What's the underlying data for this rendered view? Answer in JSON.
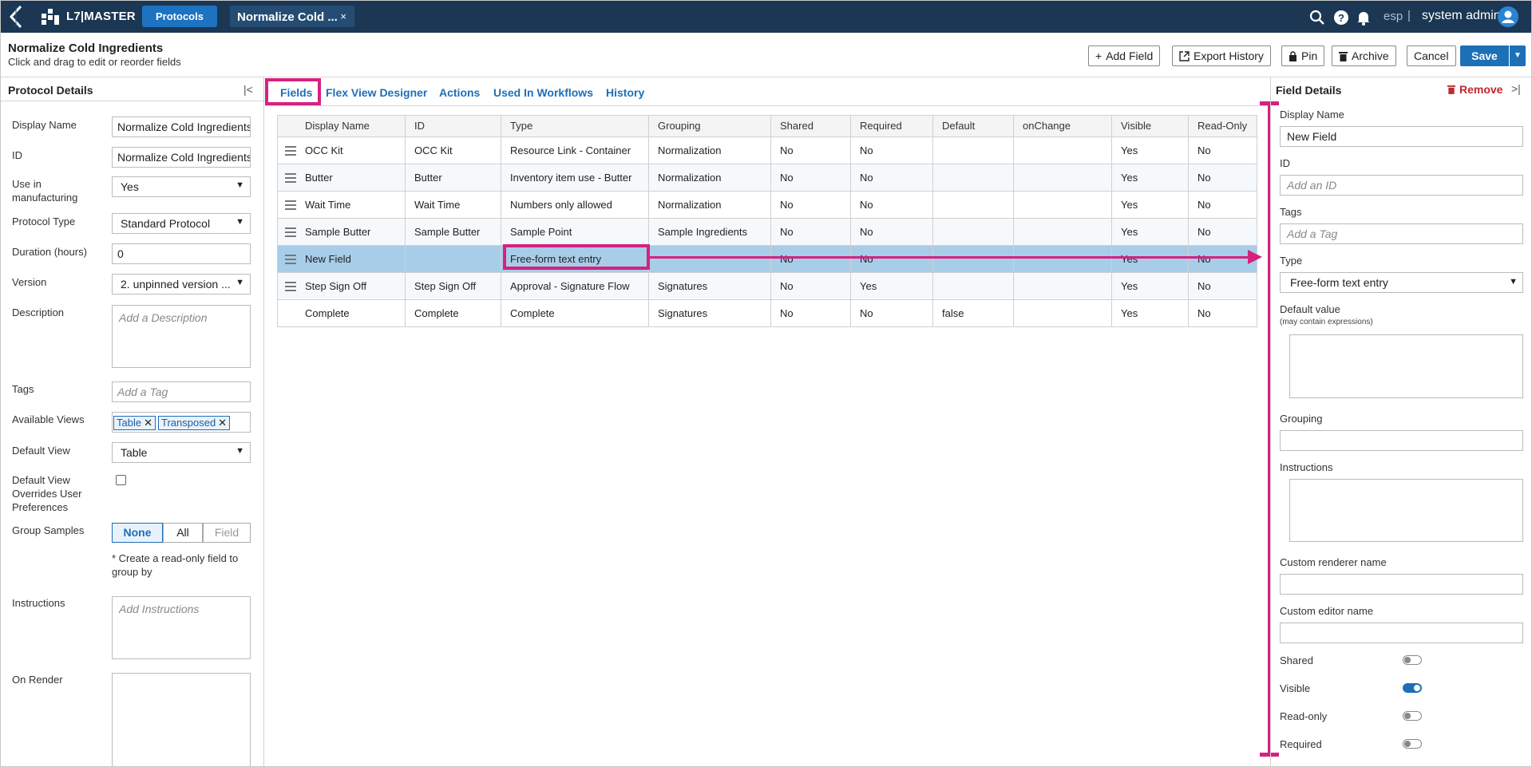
{
  "topbar": {
    "brand": "L7|MASTER",
    "nav_protocols": "Protocols",
    "doc_tab": "Normalize Cold ...",
    "doc_tab_close": "×",
    "lang": "esp",
    "separator": "|",
    "user": "system admin"
  },
  "header": {
    "title": "Normalize Cold Ingredients",
    "subtitle": "Click and drag to edit or reorder fields",
    "buttons": {
      "add_field": "Add Field",
      "export_history": "Export History",
      "pin": "Pin",
      "archive": "Archive",
      "cancel": "Cancel",
      "save": "Save"
    }
  },
  "protocol_details": {
    "title": "Protocol Details",
    "fields": {
      "display_name": {
        "label": "Display Name",
        "value": "Normalize Cold Ingredients"
      },
      "id": {
        "label": "ID",
        "value": "Normalize Cold Ingredients"
      },
      "use_in_manufacturing": {
        "label": "Use in manufacturing",
        "value": "Yes"
      },
      "protocol_type": {
        "label": "Protocol Type",
        "value": "Standard Protocol"
      },
      "duration": {
        "label": "Duration (hours)",
        "value": "0"
      },
      "version": {
        "label": "Version",
        "value": "2. unpinned version ..."
      },
      "description": {
        "label": "Description",
        "placeholder": "Add a Description"
      },
      "tags": {
        "label": "Tags",
        "placeholder": "Add a Tag"
      },
      "available_views": {
        "label": "Available Views",
        "chips": [
          "Table",
          "Transposed"
        ]
      },
      "default_view": {
        "label": "Default View",
        "value": "Table"
      },
      "default_view_overrides": {
        "label": "Default View Overrides User Preferences",
        "checked": false
      },
      "group_samples": {
        "label": "Group Samples",
        "options": [
          "None",
          "All",
          "Field"
        ],
        "selected": "None",
        "note": "* Create a read-only field to group by"
      },
      "instructions": {
        "label": "Instructions",
        "placeholder": "Add Instructions"
      },
      "on_render": {
        "label": "On Render"
      }
    }
  },
  "tabs": [
    "Fields",
    "Flex View Designer",
    "Actions",
    "Used In Workflows",
    "History"
  ],
  "active_tab": "Fields",
  "table": {
    "columns": [
      "Display Name",
      "ID",
      "Type",
      "Grouping",
      "Shared",
      "Required",
      "Default",
      "onChange",
      "Visible",
      "Read-Only"
    ],
    "rows": [
      [
        "OCC Kit",
        "OCC Kit",
        "Resource Link - Container",
        "Normalization",
        "No",
        "No",
        "",
        "",
        "Yes",
        "No"
      ],
      [
        "Butter",
        "Butter",
        "Inventory item use - Butter",
        "Normalization",
        "No",
        "No",
        "",
        "",
        "Yes",
        "No"
      ],
      [
        "Wait Time",
        "Wait Time",
        "Numbers only allowed",
        "Normalization",
        "No",
        "No",
        "",
        "",
        "Yes",
        "No"
      ],
      [
        "Sample Butter",
        "Sample Butter",
        "Sample Point",
        "Sample Ingredients",
        "No",
        "No",
        "",
        "",
        "Yes",
        "No"
      ],
      [
        "New Field",
        "",
        "Free-form text entry",
        "",
        "No",
        "No",
        "",
        "",
        "Yes",
        "No"
      ],
      [
        "Step Sign Off",
        "Step Sign Off",
        "Approval - Signature Flow",
        "Signatures",
        "No",
        "Yes",
        "",
        "",
        "Yes",
        "No"
      ],
      [
        "Complete",
        "Complete",
        "Complete",
        "Signatures",
        "No",
        "No",
        "false",
        "",
        "Yes",
        "No"
      ]
    ],
    "selected_row": 4
  },
  "field_details": {
    "title": "Field Details",
    "remove": "Remove",
    "display_name": {
      "label": "Display Name",
      "value": "New Field"
    },
    "id": {
      "label": "ID",
      "placeholder": "Add an ID"
    },
    "tags": {
      "label": "Tags",
      "placeholder": "Add a Tag"
    },
    "type": {
      "label": "Type",
      "value": "Free-form text entry"
    },
    "default_value": {
      "label": "Default value",
      "hint": "(may contain expressions)"
    },
    "grouping": {
      "label": "Grouping"
    },
    "instructions": {
      "label": "Instructions"
    },
    "custom_renderer": {
      "label": "Custom renderer name"
    },
    "custom_editor": {
      "label": "Custom editor name"
    },
    "toggles": {
      "shared": {
        "label": "Shared",
        "on": false
      },
      "visible": {
        "label": "Visible",
        "on": true
      },
      "read_only": {
        "label": "Read-only",
        "on": false
      },
      "required": {
        "label": "Required",
        "on": false
      }
    }
  },
  "colors": {
    "topbar": "#1b3754",
    "accent": "#1d6fb8",
    "highlight": "#d6217f",
    "selected_row": "#a8cde9",
    "remove": "#c0282d"
  },
  "icons": [
    "back-chevron-icon",
    "grid-logo-icon",
    "close-icon",
    "search-icon",
    "help-icon",
    "bell-icon",
    "user-avatar-icon",
    "plus-icon",
    "external-link-icon",
    "lock-icon",
    "trash-icon",
    "caret-down-icon",
    "collapse-left-icon",
    "collapse-right-icon",
    "drag-handle-icon"
  ]
}
